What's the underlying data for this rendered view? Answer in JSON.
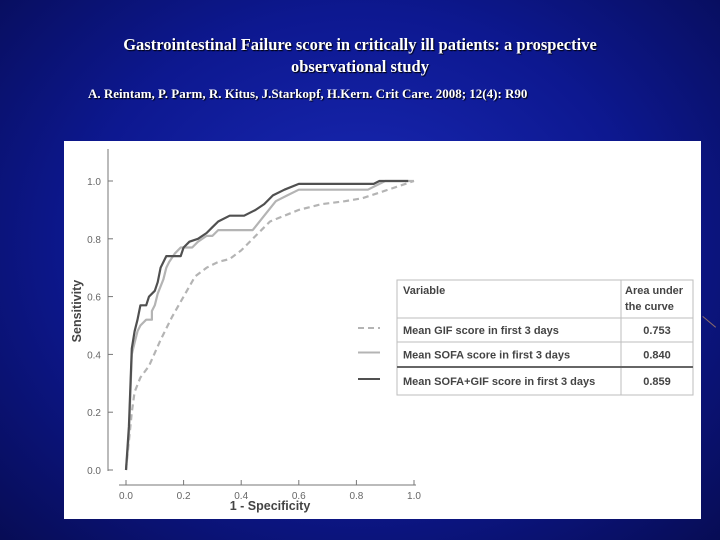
{
  "slide": {
    "title_lines": [
      "Gastrointestinal Failure score in critically ill patients: a prospective",
      "observational study"
    ],
    "citation": "A. Reintam, P. Parm, R. Kitus, J.Starkopf, H.Kern. Crit Care. 2008; 12(4): R90"
  },
  "chart_data": {
    "type": "line",
    "title": "",
    "xlabel": "1 - Specificity",
    "ylabel": "Sensitivity",
    "xlim": [
      0,
      1
    ],
    "ylim": [
      0,
      1
    ],
    "x_ticks": [
      "0.0",
      "0.2",
      "0.4",
      "0.6",
      "0.8",
      "1.0"
    ],
    "y_ticks": [
      "0.0",
      "0.2",
      "0.4",
      "0.6",
      "0.8",
      "1.0"
    ],
    "grid": false,
    "legend_table": {
      "headers": [
        "Variable",
        "Area under the curve"
      ],
      "rows": [
        {
          "variable": "Mean GIF score in first 3 days",
          "auc": "0.753",
          "style": "dashed",
          "color": "#b4b4b4"
        },
        {
          "variable": "Mean SOFA score in first 3 days",
          "auc": "0.840",
          "style": "solid",
          "color": "#b4b4b4"
        },
        {
          "variable": "Mean SOFA+GIF score in first 3 days",
          "auc": "0.859",
          "style": "solid",
          "color": "#505050"
        }
      ]
    },
    "series": [
      {
        "color": "#b4b4b4",
        "style": "dashed",
        "points": [
          [
            0,
            0
          ],
          [
            0.01,
            0.1
          ],
          [
            0.02,
            0.2
          ],
          [
            0.03,
            0.27
          ],
          [
            0.05,
            0.32
          ],
          [
            0.08,
            0.36
          ],
          [
            0.12,
            0.45
          ],
          [
            0.16,
            0.53
          ],
          [
            0.2,
            0.6
          ],
          [
            0.24,
            0.67
          ],
          [
            0.28,
            0.7
          ],
          [
            0.32,
            0.72
          ],
          [
            0.36,
            0.73
          ],
          [
            0.4,
            0.76
          ],
          [
            0.45,
            0.81
          ],
          [
            0.5,
            0.86
          ],
          [
            0.55,
            0.88
          ],
          [
            0.6,
            0.9
          ],
          [
            0.68,
            0.92
          ],
          [
            0.76,
            0.93
          ],
          [
            0.82,
            0.94
          ],
          [
            0.88,
            0.96
          ],
          [
            0.94,
            0.98
          ],
          [
            1.0,
            1.0
          ]
        ]
      },
      {
        "color": "#b4b4b4",
        "style": "solid",
        "points": [
          [
            0,
            0
          ],
          [
            0.01,
            0.12
          ],
          [
            0.02,
            0.4
          ],
          [
            0.03,
            0.44
          ],
          [
            0.04,
            0.48
          ],
          [
            0.05,
            0.5
          ],
          [
            0.07,
            0.52
          ],
          [
            0.09,
            0.52
          ],
          [
            0.09,
            0.55
          ],
          [
            0.1,
            0.57
          ],
          [
            0.11,
            0.61
          ],
          [
            0.13,
            0.66
          ],
          [
            0.14,
            0.7
          ],
          [
            0.15,
            0.72
          ],
          [
            0.17,
            0.75
          ],
          [
            0.19,
            0.77
          ],
          [
            0.23,
            0.77
          ],
          [
            0.25,
            0.79
          ],
          [
            0.28,
            0.81
          ],
          [
            0.3,
            0.81
          ],
          [
            0.32,
            0.83
          ],
          [
            0.36,
            0.83
          ],
          [
            0.44,
            0.83
          ],
          [
            0.48,
            0.88
          ],
          [
            0.52,
            0.93
          ],
          [
            0.56,
            0.95
          ],
          [
            0.6,
            0.97
          ],
          [
            0.7,
            0.97
          ],
          [
            0.84,
            0.97
          ],
          [
            0.88,
            0.99
          ],
          [
            0.9,
            1.0
          ],
          [
            1.0,
            1.0
          ]
        ]
      },
      {
        "color": "#505050",
        "style": "solid",
        "points": [
          [
            0,
            0
          ],
          [
            0.01,
            0.15
          ],
          [
            0.02,
            0.42
          ],
          [
            0.03,
            0.48
          ],
          [
            0.04,
            0.52
          ],
          [
            0.05,
            0.57
          ],
          [
            0.07,
            0.57
          ],
          [
            0.08,
            0.6
          ],
          [
            0.1,
            0.62
          ],
          [
            0.11,
            0.65
          ],
          [
            0.12,
            0.7
          ],
          [
            0.14,
            0.74
          ],
          [
            0.19,
            0.74
          ],
          [
            0.2,
            0.77
          ],
          [
            0.22,
            0.79
          ],
          [
            0.25,
            0.8
          ],
          [
            0.28,
            0.82
          ],
          [
            0.3,
            0.84
          ],
          [
            0.32,
            0.86
          ],
          [
            0.36,
            0.88
          ],
          [
            0.41,
            0.88
          ],
          [
            0.45,
            0.9
          ],
          [
            0.48,
            0.92
          ],
          [
            0.51,
            0.95
          ],
          [
            0.55,
            0.97
          ],
          [
            0.6,
            0.99
          ],
          [
            0.7,
            0.99
          ],
          [
            0.8,
            0.99
          ],
          [
            0.86,
            0.99
          ],
          [
            0.88,
            1.0
          ],
          [
            0.98,
            1.0
          ]
        ]
      }
    ]
  }
}
